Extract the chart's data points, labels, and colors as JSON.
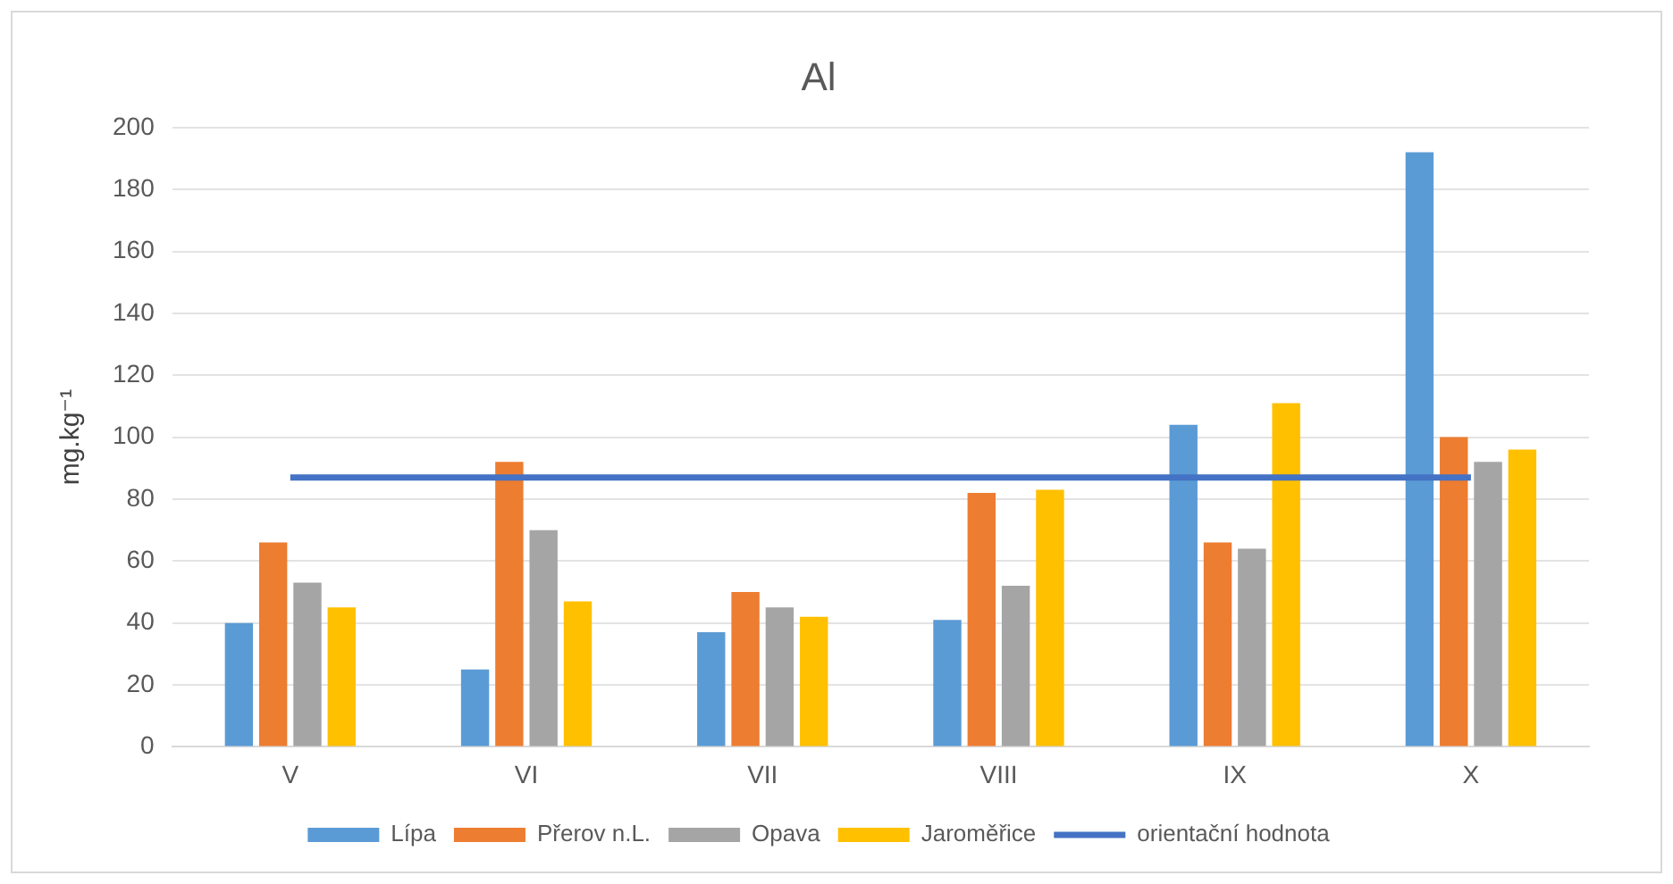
{
  "chart_data": {
    "type": "bar",
    "title": "Al",
    "ylabel": "mg.kg⁻¹",
    "categories": [
      "V",
      "VI",
      "VII",
      "VIII",
      "IX",
      "X"
    ],
    "series": [
      {
        "name": "Lípa",
        "color": "#5b9bd5",
        "values": [
          40,
          25,
          37,
          41,
          104,
          192
        ]
      },
      {
        "name": "Přerov n.L.",
        "color": "#ed7d31",
        "values": [
          66,
          92,
          50,
          82,
          66,
          100
        ]
      },
      {
        "name": "Opava",
        "color": "#a5a5a5",
        "values": [
          53,
          70,
          45,
          52,
          64,
          92
        ]
      },
      {
        "name": "Jaroměřice",
        "color": "#ffc000",
        "values": [
          45,
          47,
          42,
          83,
          111,
          96
        ]
      },
      {
        "name": "orientační hodnota",
        "color": "#4472c4",
        "type": "line",
        "values": [
          87,
          87,
          87,
          87,
          87,
          87
        ]
      }
    ],
    "ylim": [
      0,
      200
    ],
    "yticks": [
      0,
      20,
      40,
      60,
      80,
      100,
      120,
      140,
      160,
      180,
      200
    ],
    "grid": "y",
    "legend": "bottom",
    "marker": "none"
  }
}
